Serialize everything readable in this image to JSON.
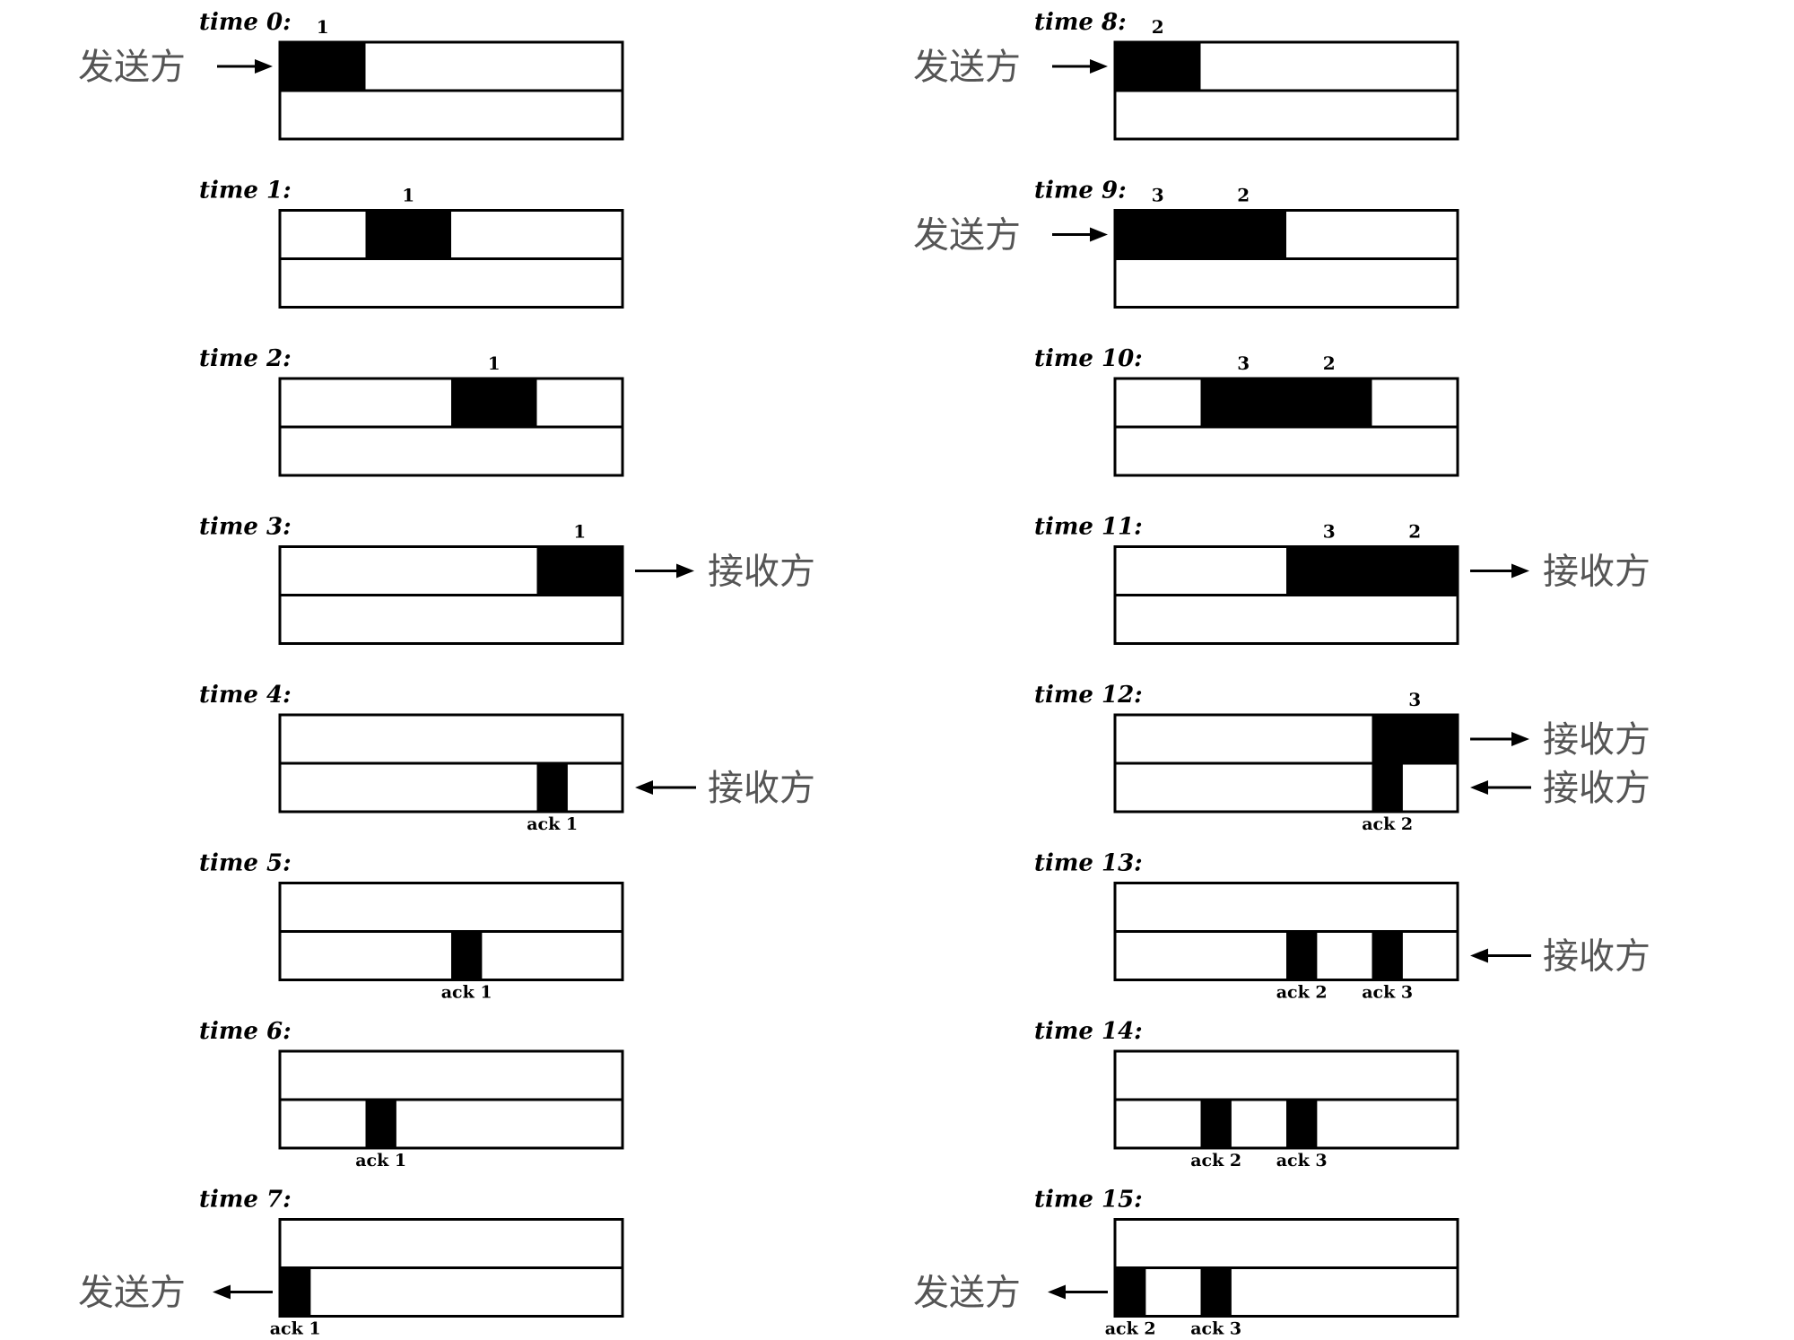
{
  "roles": {
    "sender": "发送方",
    "receiver": "接收方"
  },
  "ack_prefix": "ack",
  "panels": [
    {
      "id": 0,
      "label": "time 0:",
      "col": 0,
      "row": 0,
      "top": [
        {
          "n": "1",
          "from": 0.0,
          "to": 0.25
        }
      ],
      "bottom": [],
      "arrows": [
        {
          "side": "left",
          "lane": "top",
          "role": "sender",
          "dir": "in"
        }
      ]
    },
    {
      "id": 1,
      "label": "time 1:",
      "col": 0,
      "row": 1,
      "top": [
        {
          "n": "1",
          "from": 0.25,
          "to": 0.5
        }
      ],
      "bottom": [],
      "arrows": []
    },
    {
      "id": 2,
      "label": "time 2:",
      "col": 0,
      "row": 2,
      "top": [
        {
          "n": "1",
          "from": 0.5,
          "to": 0.75
        }
      ],
      "bottom": [],
      "arrows": []
    },
    {
      "id": 3,
      "label": "time 3:",
      "col": 0,
      "row": 3,
      "top": [
        {
          "n": "1",
          "from": 0.75,
          "to": 1.0
        }
      ],
      "bottom": [],
      "arrows": [
        {
          "side": "right",
          "lane": "top",
          "role": "receiver",
          "dir": "out"
        }
      ]
    },
    {
      "id": 4,
      "label": "time 4:",
      "col": 0,
      "row": 4,
      "top": [],
      "bottom": [
        {
          "ack": "ack 1",
          "pos": 0.75
        }
      ],
      "arrows": [
        {
          "side": "right",
          "lane": "bottom",
          "role": "receiver",
          "dir": "in"
        }
      ]
    },
    {
      "id": 5,
      "label": "time 5:",
      "col": 0,
      "row": 5,
      "top": [],
      "bottom": [
        {
          "ack": "ack 1",
          "pos": 0.5
        }
      ],
      "arrows": []
    },
    {
      "id": 6,
      "label": "time 6:",
      "col": 0,
      "row": 6,
      "top": [],
      "bottom": [
        {
          "ack": "ack 1",
          "pos": 0.25
        }
      ],
      "arrows": []
    },
    {
      "id": 7,
      "label": "time 7:",
      "col": 0,
      "row": 7,
      "top": [],
      "bottom": [
        {
          "ack": "ack 1",
          "pos": 0.0
        }
      ],
      "arrows": [
        {
          "side": "left",
          "lane": "bottom",
          "role": "sender",
          "dir": "out"
        }
      ]
    },
    {
      "id": 8,
      "label": "time 8:",
      "col": 1,
      "row": 0,
      "top": [
        {
          "n": "2",
          "from": 0.0,
          "to": 0.25
        }
      ],
      "bottom": [],
      "arrows": [
        {
          "side": "left",
          "lane": "top",
          "role": "sender",
          "dir": "in"
        }
      ]
    },
    {
      "id": 9,
      "label": "time 9:",
      "col": 1,
      "row": 1,
      "top": [
        {
          "n": "3",
          "from": 0.0,
          "to": 0.25
        },
        {
          "n": "2",
          "from": 0.25,
          "to": 0.5
        }
      ],
      "bottom": [],
      "arrows": [
        {
          "side": "left",
          "lane": "top",
          "role": "sender",
          "dir": "in"
        }
      ]
    },
    {
      "id": 10,
      "label": "time 10:",
      "col": 1,
      "row": 2,
      "top": [
        {
          "n": "3",
          "from": 0.25,
          "to": 0.5
        },
        {
          "n": "2",
          "from": 0.5,
          "to": 0.75
        }
      ],
      "bottom": [],
      "arrows": []
    },
    {
      "id": 11,
      "label": "time 11:",
      "col": 1,
      "row": 3,
      "top": [
        {
          "n": "3",
          "from": 0.5,
          "to": 0.75
        },
        {
          "n": "2",
          "from": 0.75,
          "to": 1.0
        }
      ],
      "bottom": [],
      "arrows": [
        {
          "side": "right",
          "lane": "top",
          "role": "receiver",
          "dir": "out"
        }
      ]
    },
    {
      "id": 12,
      "label": "time 12:",
      "col": 1,
      "row": 4,
      "top": [
        {
          "n": "3",
          "from": 0.75,
          "to": 1.0
        }
      ],
      "bottom": [
        {
          "ack": "ack 2",
          "pos": 0.75
        }
      ],
      "arrows": [
        {
          "side": "right",
          "lane": "top",
          "role": "receiver",
          "dir": "out"
        },
        {
          "side": "right",
          "lane": "bottom",
          "role": "receiver",
          "dir": "in"
        }
      ]
    },
    {
      "id": 13,
      "label": "time 13:",
      "col": 1,
      "row": 5,
      "top": [],
      "bottom": [
        {
          "ack": "ack 2",
          "pos": 0.5
        },
        {
          "ack": "ack 3",
          "pos": 0.75
        }
      ],
      "arrows": [
        {
          "side": "right",
          "lane": "bottom",
          "role": "receiver",
          "dir": "in"
        }
      ]
    },
    {
      "id": 14,
      "label": "time 14:",
      "col": 1,
      "row": 6,
      "top": [],
      "bottom": [
        {
          "ack": "ack 2",
          "pos": 0.25
        },
        {
          "ack": "ack 3",
          "pos": 0.5
        }
      ],
      "arrows": []
    },
    {
      "id": 15,
      "label": "time 15:",
      "col": 1,
      "row": 7,
      "top": [],
      "bottom": [
        {
          "ack": "ack 2",
          "pos": 0.0
        },
        {
          "ack": "ack 3",
          "pos": 0.25
        }
      ],
      "arrows": [
        {
          "side": "left",
          "lane": "bottom",
          "role": "sender",
          "dir": "out"
        }
      ]
    }
  ]
}
